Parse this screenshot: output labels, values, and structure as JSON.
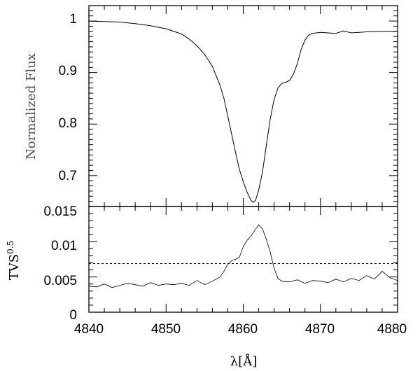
{
  "chart_data": [
    {
      "type": "line",
      "ylabel": "Normalized Flux",
      "xlim": [
        4840,
        4880
      ],
      "ylim": [
        0.64,
        1.03
      ],
      "yticks": [
        1,
        0.9,
        0.8,
        0.7
      ],
      "ytick_labels": [
        "1",
        "0.9",
        "0.8",
        "0.7"
      ],
      "series": [
        {
          "x": [
            4840,
            4842,
            4844,
            4846,
            4848,
            4850,
            4852,
            4853,
            4854,
            4855,
            4856,
            4857,
            4857.5,
            4858,
            4858.5,
            4859,
            4859.5,
            4860,
            4860.5,
            4861,
            4861.3,
            4861.6,
            4862,
            4862.5,
            4863,
            4863.5,
            4864,
            4864.5,
            4865,
            4865.5,
            4866,
            4866.5,
            4867,
            4867.5,
            4868,
            4868.5,
            4869,
            4870,
            4871,
            4872,
            4873,
            4874,
            4876,
            4878,
            4880
          ],
          "y": [
            1.0,
            0.999,
            0.998,
            0.995,
            0.991,
            0.985,
            0.975,
            0.965,
            0.952,
            0.935,
            0.912,
            0.875,
            0.85,
            0.815,
            0.78,
            0.745,
            0.712,
            0.688,
            0.668,
            0.652,
            0.648,
            0.652,
            0.672,
            0.708,
            0.76,
            0.81,
            0.848,
            0.87,
            0.879,
            0.881,
            0.885,
            0.897,
            0.917,
            0.945,
            0.963,
            0.973,
            0.976,
            0.978,
            0.977,
            0.976,
            0.981,
            0.977,
            0.979,
            0.98,
            0.98
          ]
        }
      ]
    },
    {
      "type": "line",
      "ylabel": "TVS",
      "ylabel_superscript": "0.5",
      "xlabel": "λ[Å]",
      "xlim": [
        4840,
        4880
      ],
      "ylim": [
        0,
        0.015
      ],
      "xticks": [
        4840,
        4850,
        4860,
        4870,
        4880
      ],
      "xtick_labels": [
        "4840",
        "4850",
        "4860",
        "4870",
        "4880"
      ],
      "yticks": [
        0.015,
        0.01,
        0.005,
        0
      ],
      "ytick_labels": [
        "0.015",
        "0.01",
        "0.005",
        "0"
      ],
      "threshold": 0.0069,
      "series": [
        {
          "x": [
            4840,
            4841,
            4842,
            4843,
            4844,
            4845,
            4846,
            4847,
            4848,
            4849,
            4850,
            4851,
            4852,
            4853,
            4854,
            4855,
            4856,
            4857,
            4857.5,
            4858,
            4858.5,
            4859,
            4859.5,
            4860,
            4860.5,
            4861,
            4861.5,
            4862,
            4862.5,
            4863,
            4863.5,
            4864,
            4864.5,
            4865,
            4866,
            4867,
            4868,
            4869,
            4870,
            4871,
            4872,
            4873,
            4874,
            4875,
            4876,
            4877,
            4878,
            4879,
            4880
          ],
          "y": [
            0.0037,
            0.0036,
            0.004,
            0.0035,
            0.0038,
            0.0041,
            0.0039,
            0.0037,
            0.0042,
            0.0038,
            0.004,
            0.0039,
            0.0041,
            0.0038,
            0.0045,
            0.0039,
            0.0044,
            0.005,
            0.0058,
            0.0068,
            0.0073,
            0.0075,
            0.0078,
            0.0093,
            0.0102,
            0.0108,
            0.0116,
            0.0124,
            0.0118,
            0.0103,
            0.0085,
            0.0062,
            0.0048,
            0.0044,
            0.0043,
            0.0046,
            0.0041,
            0.0045,
            0.0044,
            0.0042,
            0.0047,
            0.0043,
            0.0048,
            0.0045,
            0.0052,
            0.0047,
            0.0058,
            0.0049,
            0.0045
          ]
        }
      ]
    }
  ]
}
